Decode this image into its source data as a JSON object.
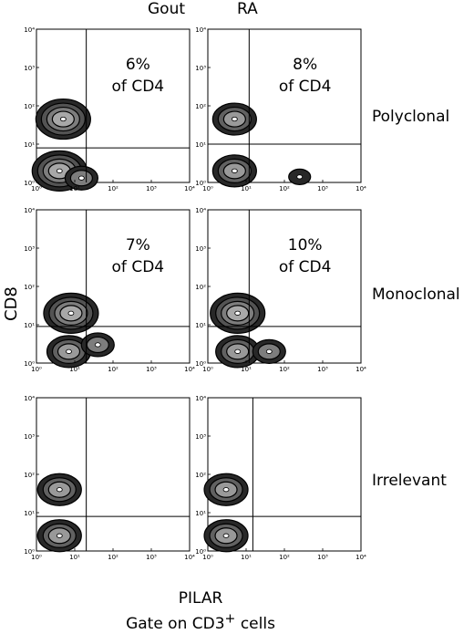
{
  "columns": [
    "Gout",
    "RA"
  ],
  "rows": [
    "Polyclonal",
    "Monoclonal",
    "Irrelevant"
  ],
  "y_axis_label": "CD8",
  "x_axis_label": "PILAR",
  "footer": {
    "prefix": "Gate on CD3",
    "superscript": "+",
    "suffix": " cells"
  },
  "chart_data": {
    "type": "contour",
    "panel_axes": {
      "x_range": [
        1,
        10000
      ],
      "y_range": [
        1,
        10000
      ],
      "scale": "log",
      "tick_values": [
        1,
        10,
        100,
        1000,
        10000
      ],
      "x_ticks": [
        "10⁰",
        "10¹",
        "10²",
        "10³",
        "10⁴"
      ],
      "y_ticks": [
        "10⁰",
        "10¹",
        "10²",
        "10³",
        "10⁴"
      ]
    },
    "panels": [
      {
        "row": "Polyclonal",
        "column": "Gout",
        "percent_line1": "6%",
        "percent_line2": "of CD4",
        "gate_x": 20,
        "gate_y": 8,
        "blobs": [
          {
            "x": 5,
            "y": 45,
            "levels": 4
          },
          {
            "x": 4,
            "y": 2,
            "levels": 4
          },
          {
            "x": 15,
            "y": 1.3,
            "levels": 2
          }
        ]
      },
      {
        "row": "Polyclonal",
        "column": "RA",
        "percent_line1": "8%",
        "percent_line2": "of CD4",
        "gate_x": 12,
        "gate_y": 10,
        "blobs": [
          {
            "x": 5,
            "y": 45,
            "levels": 3
          },
          {
            "x": 5,
            "y": 2,
            "levels": 3
          },
          {
            "x": 250,
            "y": 1.4,
            "levels": 1
          }
        ]
      },
      {
        "row": "Monoclonal",
        "column": "Gout",
        "percent_line1": "7%",
        "percent_line2": "of CD4",
        "gate_x": 20,
        "gate_y": 9,
        "blobs": [
          {
            "x": 8,
            "y": 20,
            "levels": 4
          },
          {
            "x": 7,
            "y": 2,
            "levels": 3
          },
          {
            "x": 40,
            "y": 3,
            "levels": 2
          }
        ]
      },
      {
        "row": "Monoclonal",
        "column": "RA",
        "percent_line1": "10%",
        "percent_line2": "of CD4",
        "gate_x": 12,
        "gate_y": 9,
        "blobs": [
          {
            "x": 6,
            "y": 20,
            "levels": 4
          },
          {
            "x": 6,
            "y": 2,
            "levels": 3
          },
          {
            "x": 40,
            "y": 2,
            "levels": 2
          }
        ]
      },
      {
        "row": "Irrelevant",
        "column": "Gout",
        "percent_line1": "",
        "percent_line2": "",
        "gate_x": 20,
        "gate_y": 8,
        "blobs": [
          {
            "x": 4,
            "y": 40,
            "levels": 3
          },
          {
            "x": 4,
            "y": 2.5,
            "levels": 3
          }
        ]
      },
      {
        "row": "Irrelevant",
        "column": "RA",
        "percent_line1": "",
        "percent_line2": "",
        "gate_x": 15,
        "gate_y": 8,
        "blobs": [
          {
            "x": 3,
            "y": 40,
            "levels": 3
          },
          {
            "x": 3,
            "y": 2.5,
            "levels": 3
          }
        ]
      }
    ]
  }
}
